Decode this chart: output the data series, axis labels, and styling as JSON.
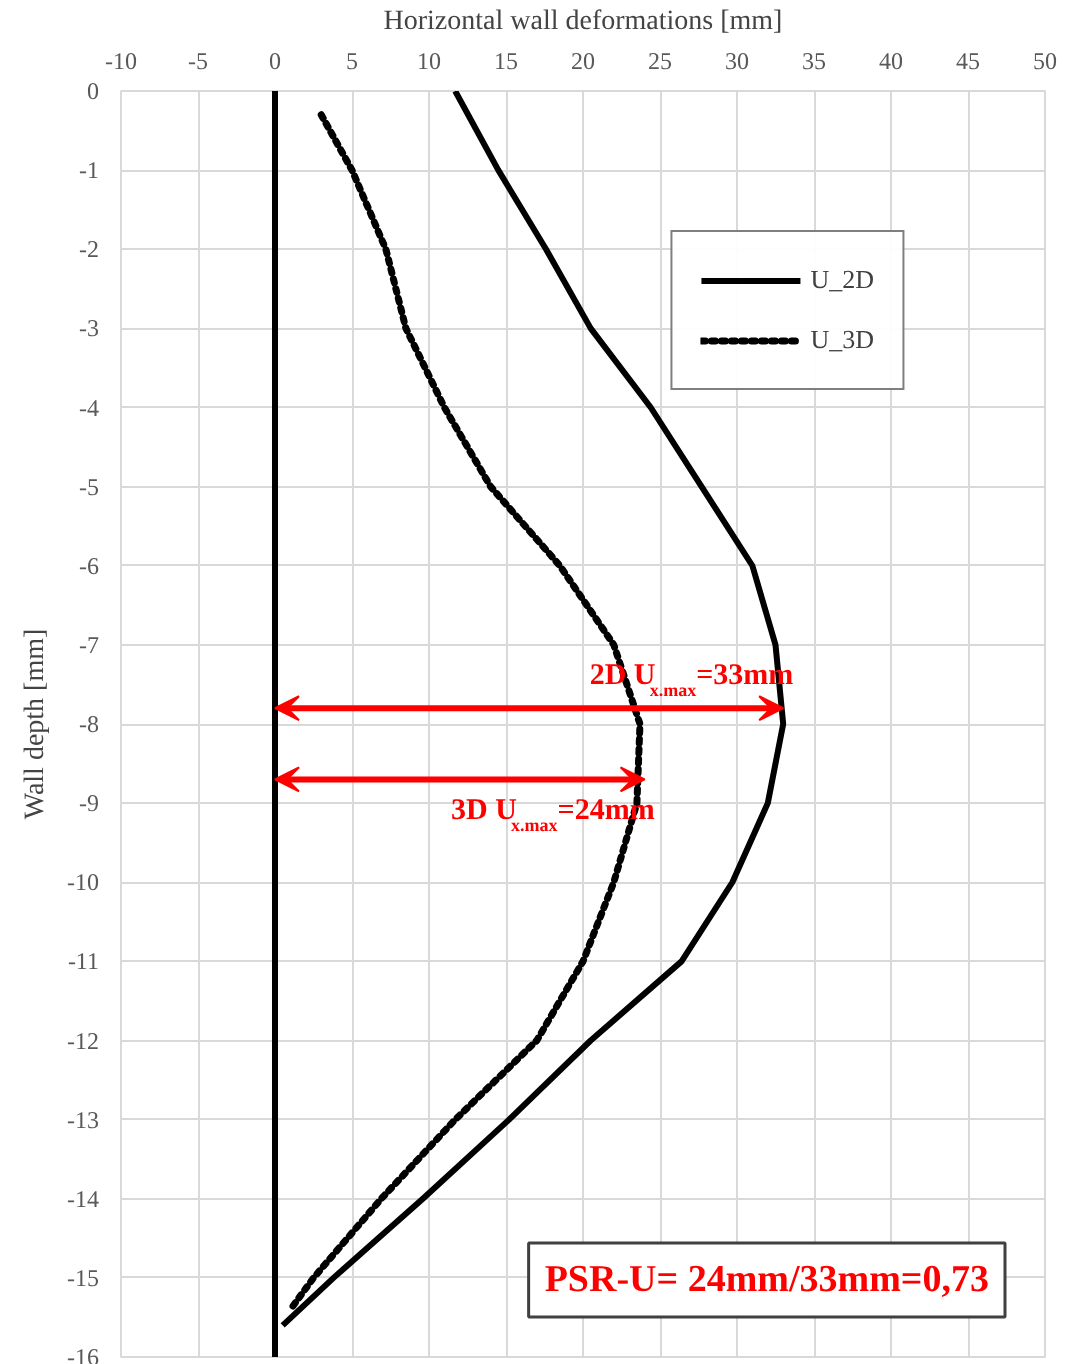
{
  "chart_data": {
    "type": "line",
    "xlabel": "Horizontal wall deformations [mm]",
    "ylabel": "Wall depth [mm]",
    "xlim": [
      -10,
      50
    ],
    "xticks": [
      -10,
      -5,
      0,
      5,
      10,
      15,
      20,
      25,
      30,
      35,
      40,
      45,
      50
    ],
    "ylim": [
      -16,
      0
    ],
    "yticks": [
      0,
      -1,
      -2,
      -3,
      -4,
      -5,
      -6,
      -7,
      -8,
      -9,
      -10,
      -11,
      -12,
      -13,
      -14,
      -15,
      -16
    ],
    "grid": true,
    "legend": "top right",
    "marker": "none",
    "series": [
      {
        "name": "U_2D",
        "color": "#000000",
        "line_style": "solid",
        "x": [
          11.7,
          14.5,
          17.6,
          20.5,
          24.4,
          27.7,
          31,
          32.5,
          33,
          32,
          29.7,
          26.4,
          20.5,
          15.2,
          9.6,
          3.8,
          0.5
        ],
        "values": [
          0,
          -1,
          -2,
          -3,
          -4,
          -5,
          -6,
          -7,
          -8,
          -9,
          -10,
          -11,
          -12,
          -13,
          -14,
          -15,
          -15.6
        ]
      },
      {
        "name": "U_3D",
        "color": "#000000",
        "line_style": "dotted",
        "x": [
          3,
          5,
          7.2,
          8.5,
          11,
          14,
          18.5,
          22,
          23.7,
          23.5,
          22,
          20,
          17,
          11.7,
          6.9,
          2.5,
          1
        ],
        "values": [
          -0.3,
          -1,
          -2,
          -3,
          -4,
          -5,
          -6,
          -7,
          -8,
          -9,
          -10,
          -11,
          -12,
          -13,
          -14,
          -15,
          -15.4
        ]
      }
    ],
    "ref_lines": [
      {
        "axis": "x",
        "value": 0,
        "color": "#000000",
        "line_style": "solid"
      }
    ],
    "annotations": [
      {
        "text": "2D U$_{x.max}$=33mm",
        "x": 33,
        "y": -7.8
      },
      {
        "text": "3D U$_{x.max}$=24mm",
        "x": 24,
        "y": -8.7
      },
      "PSR-U= 24mm/33mm=0,73"
    ]
  }
}
